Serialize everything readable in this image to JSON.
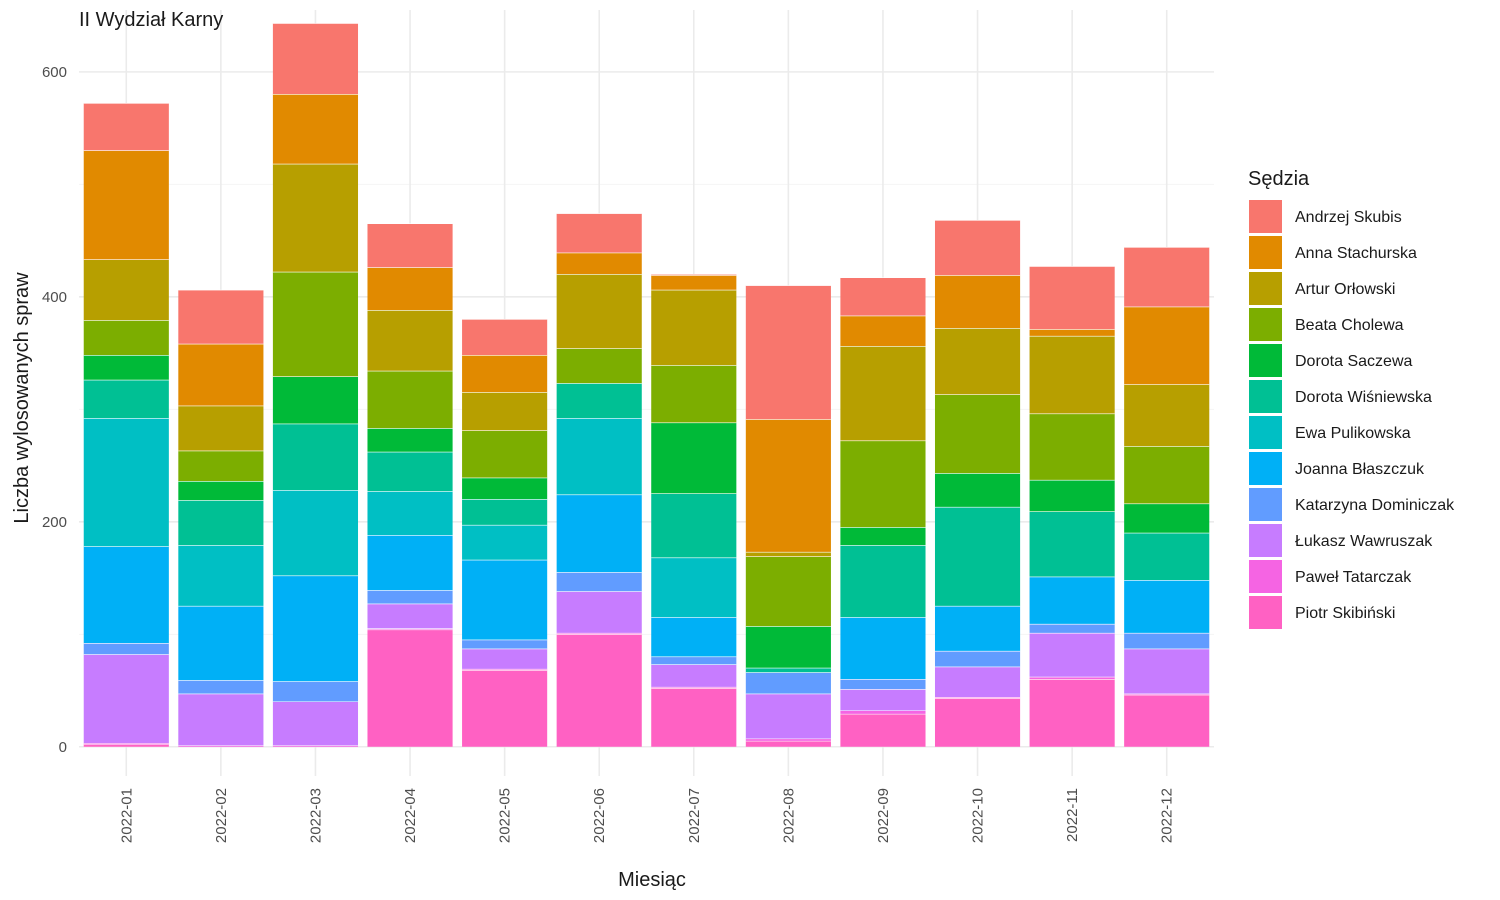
{
  "chart_data": {
    "type": "bar",
    "stacked": true,
    "title": "II Wydział Karny",
    "xlabel": "Miesiąc",
    "ylabel": "Liczba wylosowanych spraw",
    "ylim": [
      -26,
      655
    ],
    "yticks": [
      0,
      200,
      400,
      600
    ],
    "grid": true,
    "legend_title": "Sędzia",
    "legend_position": "right",
    "categories": [
      "2022-01",
      "2022-02",
      "2022-03",
      "2022-04",
      "2022-05",
      "2022-06",
      "2022-07",
      "2022-08",
      "2022-09",
      "2022-10",
      "2022-11",
      "2022-12"
    ],
    "series": [
      {
        "name": "Piotr Skibiński",
        "color": "#FF61C3",
        "values": [
          2,
          0,
          0,
          104,
          68,
          100,
          52,
          5,
          29,
          43,
          60,
          46
        ]
      },
      {
        "name": "Paweł Tatarczak",
        "color": "#F564E3",
        "values": [
          1,
          1,
          1,
          1,
          1,
          1,
          1,
          2,
          3,
          1,
          2,
          1
        ]
      },
      {
        "name": "Łukasz Wawruszak",
        "color": "#C77CFF",
        "values": [
          79,
          46,
          39,
          22,
          18,
          37,
          20,
          40,
          19,
          27,
          39,
          40
        ]
      },
      {
        "name": "Katarzyna Dominiczak",
        "color": "#619CFF",
        "values": [
          10,
          12,
          18,
          12,
          8,
          17,
          7,
          19,
          9,
          14,
          8,
          14
        ]
      },
      {
        "name": "Joanna Błaszczuk",
        "color": "#00B0F6",
        "values": [
          86,
          66,
          94,
          49,
          71,
          69,
          35,
          0,
          55,
          40,
          42,
          47
        ]
      },
      {
        "name": "Ewa Pulikowska",
        "color": "#00BFC4",
        "values": [
          114,
          54,
          76,
          39,
          31,
          68,
          53,
          0,
          0,
          0,
          0,
          0
        ]
      },
      {
        "name": "Dorota Wiśniewska",
        "color": "#00C094",
        "values": [
          34,
          40,
          59,
          35,
          23,
          31,
          57,
          4,
          64,
          88,
          58,
          42
        ]
      },
      {
        "name": "Dorota Saczewa",
        "color": "#00BA38",
        "values": [
          22,
          17,
          42,
          21,
          19,
          0,
          63,
          37,
          16,
          30,
          28,
          26
        ]
      },
      {
        "name": "Beata Cholewa",
        "color": "#7CAE00",
        "values": [
          31,
          27,
          93,
          51,
          42,
          31,
          51,
          62,
          77,
          70,
          59,
          51
        ]
      },
      {
        "name": "Artur Orłowski",
        "color": "#B79F00",
        "values": [
          54,
          40,
          96,
          54,
          34,
          66,
          67,
          4,
          84,
          59,
          69,
          55
        ]
      },
      {
        "name": "Anna Stachurska",
        "color": "#E18A00",
        "values": [
          97,
          55,
          62,
          38,
          33,
          19,
          13,
          118,
          27,
          47,
          6,
          69
        ]
      },
      {
        "name": "Andrzej Skubis",
        "color": "#F8766D",
        "values": [
          42,
          48,
          63,
          39,
          32,
          35,
          1,
          119,
          34,
          49,
          56,
          53
        ]
      }
    ]
  }
}
